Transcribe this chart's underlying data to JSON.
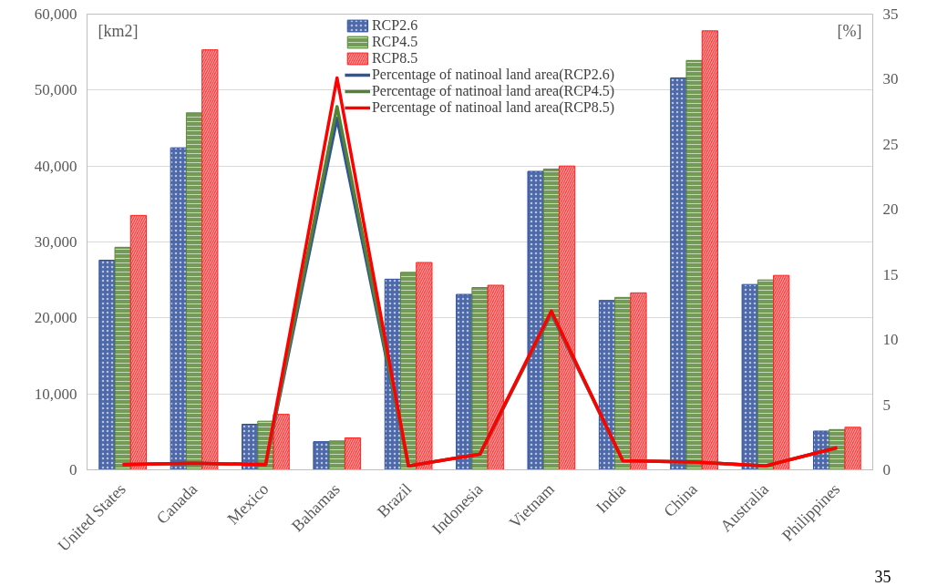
{
  "chart_data": {
    "type": "bar",
    "ylabel": "[km2]",
    "y2label": "[%]",
    "categories": [
      "United States",
      "Canada",
      "Mexico",
      "Bahamas",
      "Brazil",
      "Indonesia",
      "Vietnam",
      "India",
      "China",
      "Australia",
      "Philippines"
    ],
    "series": [
      {
        "name": "RCP2.6",
        "color": "#2f4f9a",
        "values": [
          27600,
          42400,
          6000,
          3700,
          25100,
          23100,
          39300,
          22300,
          51600,
          24400,
          5100
        ]
      },
      {
        "name": "RCP4.5",
        "color": "#5a8a3a",
        "values": [
          29300,
          47000,
          6400,
          3800,
          26000,
          24000,
          39600,
          22700,
          53900,
          25000,
          5300
        ]
      },
      {
        "name": "RCP8.5",
        "color": "#ff2020",
        "values": [
          33500,
          55300,
          7300,
          4200,
          27300,
          24300,
          40000,
          23300,
          57800,
          25600,
          5600
        ]
      },
      {
        "name": "Percentage of natinoal land area(RCP2.6)",
        "type": "line",
        "axis": "y2",
        "color": "#2f5597",
        "values": [
          0.4,
          0.5,
          0.4,
          27.0,
          0.3,
          1.2,
          12.0,
          0.7,
          0.6,
          0.3,
          1.7
        ]
      },
      {
        "name": "Percentage of natinoal land area(RCP4.5)",
        "type": "line",
        "axis": "y2",
        "color": "#548235",
        "values": [
          0.4,
          0.5,
          0.4,
          27.9,
          0.3,
          1.2,
          12.1,
          0.7,
          0.6,
          0.3,
          1.7
        ]
      },
      {
        "name": "Percentage of natinoal land area(RCP8.5)",
        "type": "line",
        "axis": "y2",
        "color": "#ff0000",
        "values": [
          0.4,
          0.5,
          0.4,
          30.1,
          0.3,
          1.2,
          12.2,
          0.7,
          0.6,
          0.3,
          1.7
        ]
      }
    ],
    "ylim": [
      0,
      60000
    ],
    "yticks": [
      {
        "value": 0,
        "label": "0"
      },
      {
        "value": 10000,
        "label": "10,000"
      },
      {
        "value": 20000,
        "label": "20,000"
      },
      {
        "value": 30000,
        "label": "30,000"
      },
      {
        "value": 40000,
        "label": "40,000"
      },
      {
        "value": 50000,
        "label": "50,000"
      },
      {
        "value": 60000,
        "label": "60,000"
      }
    ],
    "y2lim": [
      0,
      35
    ],
    "y2ticks": [
      0,
      5,
      10,
      15,
      20,
      25,
      30,
      35
    ],
    "grid": "y",
    "legend": "top",
    "annotations": [
      "35"
    ]
  }
}
